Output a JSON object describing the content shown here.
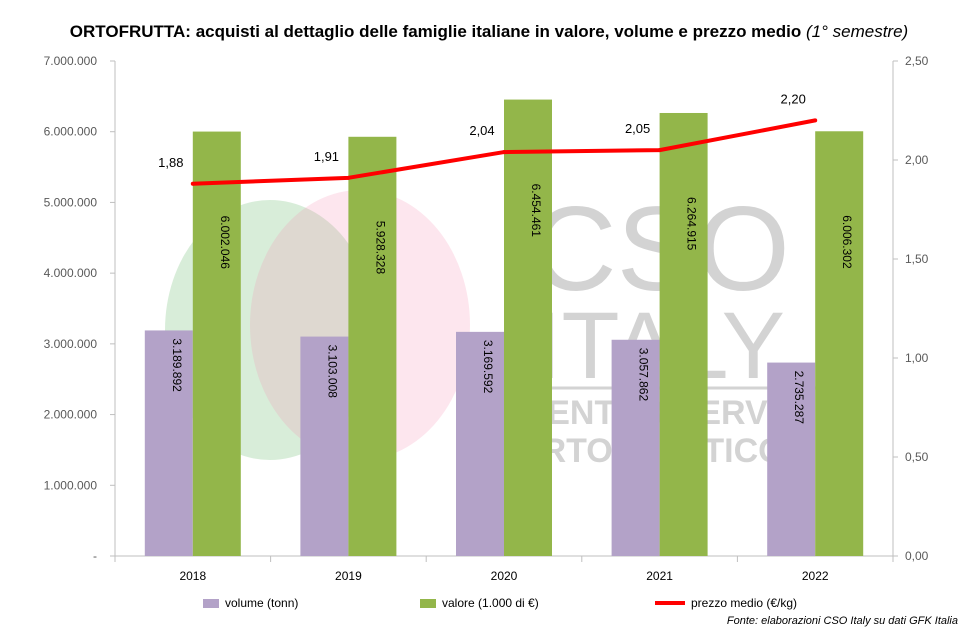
{
  "title": {
    "main": "ORTOFRUTTA: acquisti al dettaglio delle famiglie italiane in valore, volume e prezzo medio",
    "sub": "(1° semestre)"
  },
  "colors": {
    "volume": "#b3a2c8",
    "valore": "#93b64a",
    "prezzo": "#ff0000",
    "axis": "#bfbfbf",
    "watermark": "#c0c0c0"
  },
  "source": "Fonte: elaborazioni CSO Italy su dati GFK Italia",
  "watermark": {
    "line1": "CSO",
    "line2": "ITALY",
    "line3": "CENTRO SERVIZI",
    "line4": "ORTOFRUTTICOLI"
  },
  "chart_data": {
    "type": "bar",
    "categories": [
      "2018",
      "2019",
      "2020",
      "2021",
      "2022"
    ],
    "series": [
      {
        "name": "volume (tonn)",
        "axis": "left",
        "kind": "bar",
        "values": [
          3189892,
          3103008,
          3169592,
          3057862,
          2735287
        ],
        "labels": [
          "3.189.892",
          "3.103.008",
          "3.169.592",
          "3.057.862",
          "2.735.287"
        ]
      },
      {
        "name": "valore (1.000 di €)",
        "axis": "left",
        "kind": "bar",
        "values": [
          6002046,
          5928328,
          6454461,
          6264915,
          6006302
        ],
        "labels": [
          "6.002.046",
          "5.928.328",
          "6.454.461",
          "6.264.915",
          "6.006.302"
        ]
      },
      {
        "name": "prezzo medio (€/kg)",
        "axis": "right",
        "kind": "line",
        "values": [
          1.88,
          1.91,
          2.04,
          2.05,
          2.2
        ],
        "labels": [
          "1,88",
          "1,91",
          "2,04",
          "2,05",
          "2,20"
        ]
      }
    ],
    "ylim": [
      0,
      7000000
    ],
    "y2lim": [
      0,
      2.5
    ],
    "yticks": [
      "-",
      "1.000.000",
      "2.000.000",
      "3.000.000",
      "4.000.000",
      "5.000.000",
      "6.000.000",
      "7.000.000"
    ],
    "y2ticks": [
      "0,00",
      "0,50",
      "1,00",
      "1,50",
      "2,00",
      "2,50"
    ],
    "grid": false,
    "legend": "bottom"
  }
}
